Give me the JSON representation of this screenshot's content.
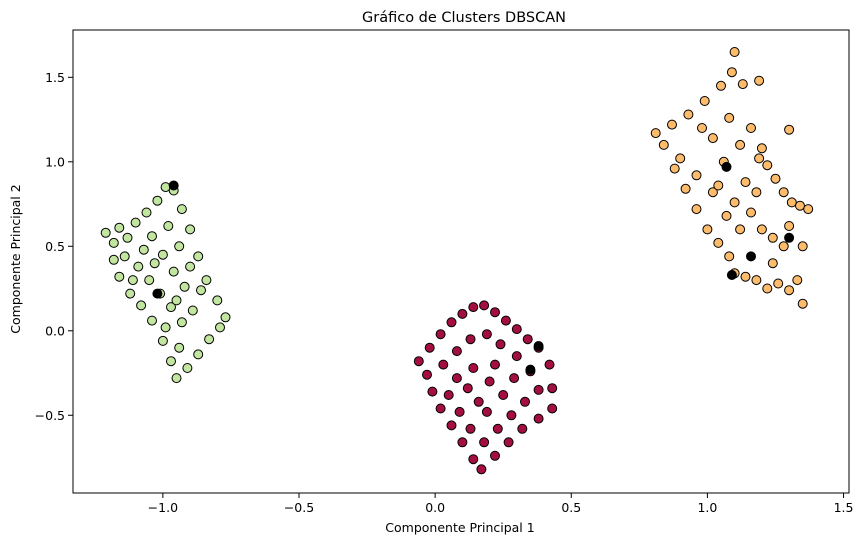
{
  "chart_data": {
    "type": "scatter",
    "title": "Gráfico de Clusters DBSCAN",
    "xlabel": "Componente Principal 1",
    "ylabel": "Componente Principal 2",
    "xlim": [
      -1.33,
      1.52
    ],
    "ylim": [
      -0.96,
      1.78
    ],
    "xticks": [
      {
        "value": -1.0,
        "label": "−1.0"
      },
      {
        "value": -0.5,
        "label": "−0.5"
      },
      {
        "value": 0.0,
        "label": "0.0"
      },
      {
        "value": 0.5,
        "label": "0.5"
      },
      {
        "value": 1.0,
        "label": "1.0"
      },
      {
        "value": 1.5,
        "label": "1.5"
      }
    ],
    "yticks": [
      {
        "value": -0.5,
        "label": "−0.5"
      },
      {
        "value": 0.0,
        "label": "0.0"
      },
      {
        "value": 0.5,
        "label": "0.5"
      },
      {
        "value": 1.0,
        "label": "1.0"
      },
      {
        "value": 1.5,
        "label": "1.5"
      }
    ],
    "grid": false,
    "legend": "none",
    "series": [
      {
        "color": "#c2e5a0",
        "points": [
          [
            -1.21,
            0.58
          ],
          [
            -1.18,
            0.52
          ],
          [
            -1.16,
            0.61
          ],
          [
            -1.13,
            0.55
          ],
          [
            -1.1,
            0.64
          ],
          [
            -1.06,
            0.7
          ],
          [
            -1.02,
            0.77
          ],
          [
            -0.99,
            0.85
          ],
          [
            -0.96,
            0.83
          ],
          [
            -0.93,
            0.72
          ],
          [
            -0.9,
            0.6
          ],
          [
            -0.87,
            0.44
          ],
          [
            -0.84,
            0.3
          ],
          [
            -0.8,
            0.18
          ],
          [
            -0.77,
            0.08
          ],
          [
            -0.79,
            0.02
          ],
          [
            -0.83,
            -0.05
          ],
          [
            -0.87,
            -0.14
          ],
          [
            -0.91,
            -0.22
          ],
          [
            -0.95,
            -0.28
          ],
          [
            -0.97,
            -0.18
          ],
          [
            -1.0,
            -0.06
          ],
          [
            -1.04,
            0.06
          ],
          [
            -1.08,
            0.15
          ],
          [
            -1.12,
            0.22
          ],
          [
            -1.16,
            0.32
          ],
          [
            -1.18,
            0.42
          ],
          [
            -1.14,
            0.44
          ],
          [
            -1.09,
            0.38
          ],
          [
            -1.05,
            0.3
          ],
          [
            -1.01,
            0.22
          ],
          [
            -0.97,
            0.14
          ],
          [
            -0.93,
            0.05
          ],
          [
            -0.89,
            0.12
          ],
          [
            -0.92,
            0.26
          ],
          [
            -0.96,
            0.35
          ],
          [
            -1.0,
            0.45
          ],
          [
            -1.04,
            0.56
          ],
          [
            -0.98,
            0.62
          ],
          [
            -0.94,
            0.5
          ],
          [
            -0.9,
            0.38
          ],
          [
            -0.86,
            0.24
          ],
          [
            -1.07,
            0.48
          ],
          [
            -1.11,
            0.3
          ],
          [
            -1.03,
            0.4
          ],
          [
            -0.95,
            0.18
          ],
          [
            -0.99,
            0.02
          ],
          [
            -0.94,
            -0.1
          ]
        ]
      },
      {
        "color": "#a50f3f",
        "points": [
          [
            -0.06,
            -0.18
          ],
          [
            -0.02,
            -0.1
          ],
          [
            0.02,
            -0.02
          ],
          [
            0.06,
            0.05
          ],
          [
            0.1,
            0.1
          ],
          [
            0.14,
            0.14
          ],
          [
            0.18,
            0.15
          ],
          [
            0.22,
            0.11
          ],
          [
            0.26,
            0.06
          ],
          [
            0.3,
            0.01
          ],
          [
            0.34,
            -0.05
          ],
          [
            0.38,
            -0.1
          ],
          [
            0.42,
            -0.2
          ],
          [
            0.43,
            -0.34
          ],
          [
            0.43,
            -0.46
          ],
          [
            0.38,
            -0.52
          ],
          [
            0.32,
            -0.58
          ],
          [
            0.27,
            -0.66
          ],
          [
            0.22,
            -0.74
          ],
          [
            0.17,
            -0.82
          ],
          [
            0.14,
            -0.76
          ],
          [
            0.1,
            -0.66
          ],
          [
            0.06,
            -0.56
          ],
          [
            0.02,
            -0.46
          ],
          [
            -0.01,
            -0.36
          ],
          [
            -0.03,
            -0.26
          ],
          [
            0.03,
            -0.2
          ],
          [
            0.08,
            -0.12
          ],
          [
            0.13,
            -0.05
          ],
          [
            0.19,
            -0.02
          ],
          [
            0.24,
            -0.08
          ],
          [
            0.3,
            -0.15
          ],
          [
            0.35,
            -0.24
          ],
          [
            0.38,
            -0.35
          ],
          [
            0.33,
            -0.42
          ],
          [
            0.28,
            -0.5
          ],
          [
            0.23,
            -0.58
          ],
          [
            0.18,
            -0.66
          ],
          [
            0.13,
            -0.58
          ],
          [
            0.09,
            -0.48
          ],
          [
            0.05,
            -0.38
          ],
          [
            0.08,
            -0.28
          ],
          [
            0.14,
            -0.22
          ],
          [
            0.2,
            -0.3
          ],
          [
            0.25,
            -0.38
          ],
          [
            0.16,
            -0.42
          ],
          [
            0.12,
            -0.34
          ],
          [
            0.22,
            -0.2
          ],
          [
            0.29,
            -0.28
          ],
          [
            0.19,
            -0.48
          ]
        ]
      },
      {
        "color": "#fdbb6c",
        "points": [
          [
            0.81,
            1.17
          ],
          [
            0.84,
            1.1
          ],
          [
            0.87,
            1.22
          ],
          [
            0.9,
            1.02
          ],
          [
            0.93,
            1.28
          ],
          [
            0.96,
            0.92
          ],
          [
            0.99,
            1.36
          ],
          [
            1.02,
            0.82
          ],
          [
            1.05,
            1.45
          ],
          [
            1.07,
            0.68
          ],
          [
            1.09,
            1.53
          ],
          [
            1.1,
            1.65
          ],
          [
            1.13,
            1.46
          ],
          [
            1.16,
            1.2
          ],
          [
            1.19,
            1.02
          ],
          [
            1.22,
            0.98
          ],
          [
            1.25,
            0.9
          ],
          [
            1.28,
            0.82
          ],
          [
            1.31,
            0.76
          ],
          [
            1.34,
            0.74
          ],
          [
            1.37,
            0.72
          ],
          [
            1.35,
            0.5
          ],
          [
            1.33,
            0.3
          ],
          [
            1.35,
            0.16
          ],
          [
            1.3,
            0.24
          ],
          [
            1.26,
            0.28
          ],
          [
            1.22,
            0.25
          ],
          [
            1.18,
            0.3
          ],
          [
            1.14,
            0.32
          ],
          [
            1.1,
            0.34
          ],
          [
            1.08,
            0.44
          ],
          [
            1.04,
            0.52
          ],
          [
            1.0,
            0.6
          ],
          [
            0.96,
            0.72
          ],
          [
            0.92,
            0.84
          ],
          [
            0.88,
            0.96
          ],
          [
            1.12,
            0.6
          ],
          [
            1.16,
            0.7
          ],
          [
            1.2,
            0.6
          ],
          [
            1.24,
            0.55
          ],
          [
            1.14,
            0.88
          ],
          [
            1.06,
            1.0
          ],
          [
            1.02,
            1.14
          ],
          [
            0.98,
            1.2
          ],
          [
            1.08,
            1.26
          ],
          [
            1.12,
            1.1
          ],
          [
            1.18,
            0.82
          ],
          [
            1.28,
            0.5
          ],
          [
            1.3,
            0.62
          ],
          [
            1.04,
            0.86
          ],
          [
            1.1,
            0.76
          ],
          [
            1.24,
            0.4
          ],
          [
            1.2,
            1.08
          ],
          [
            1.3,
            1.19
          ],
          [
            1.19,
            1.48
          ]
        ]
      },
      {
        "color": "#000000",
        "points": [
          [
            -0.96,
            0.86
          ],
          [
            -1.02,
            0.22
          ],
          [
            0.38,
            -0.09
          ],
          [
            0.35,
            -0.23
          ],
          [
            1.16,
            0.44
          ],
          [
            1.3,
            0.55
          ],
          [
            1.09,
            0.33
          ],
          [
            1.07,
            0.97
          ]
        ]
      }
    ]
  }
}
